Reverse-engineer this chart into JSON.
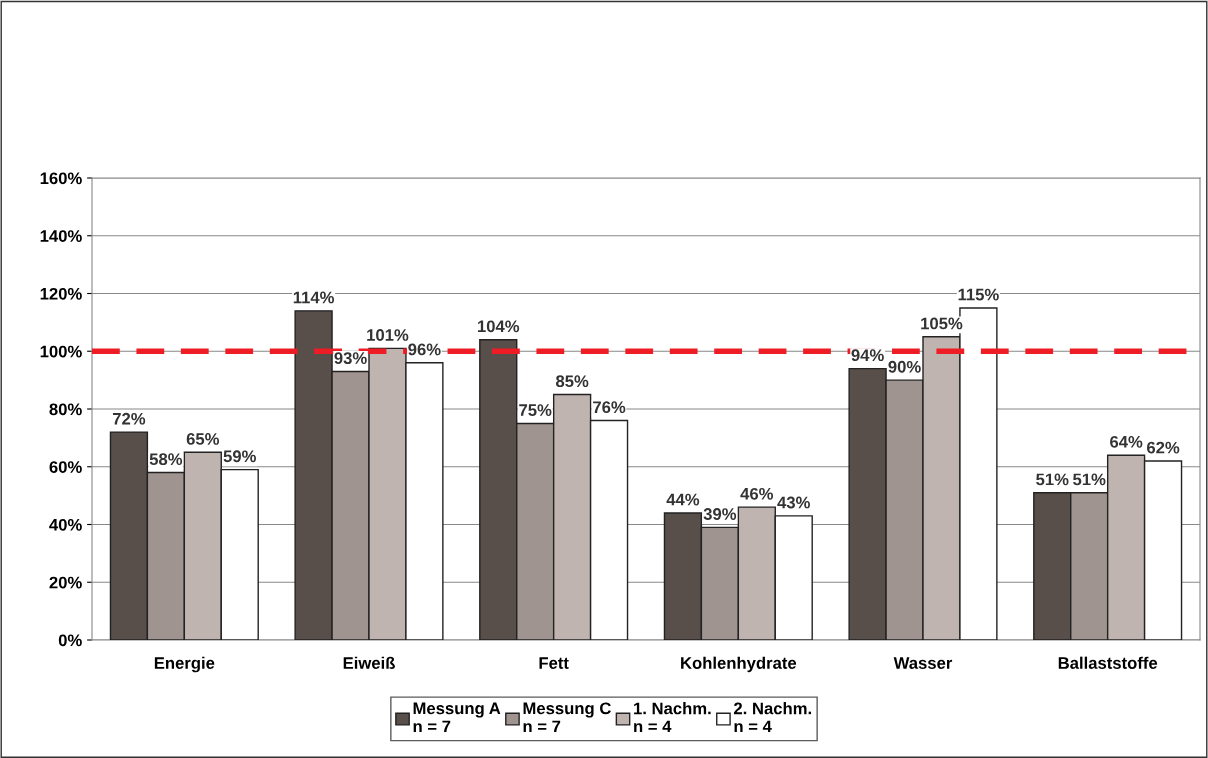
{
  "chart_data": {
    "type": "bar",
    "categories": [
      "Energie",
      "Eiweiß",
      "Fett",
      "Kohlenhydrate",
      "Wasser",
      "Ballaststoffe"
    ],
    "series": [
      {
        "name": "Messung A\nn = 7",
        "color": "#584e4a",
        "values": [
          72,
          114,
          104,
          44,
          94,
          51
        ]
      },
      {
        "name": "Messung C\nn = 7",
        "color": "#a09490",
        "values": [
          58,
          93,
          75,
          39,
          90,
          51
        ]
      },
      {
        "name": "1. Nachm.\nn = 4",
        "color": "#c0b4b0",
        "values": [
          65,
          101,
          85,
          46,
          105,
          64
        ]
      },
      {
        "name": "2. Nachm.\nn = 4",
        "color": "#ffffff",
        "values": [
          59,
          96,
          76,
          43,
          115,
          62
        ]
      }
    ],
    "ylim": [
      0,
      160
    ],
    "yticks": [
      {
        "value": 0,
        "label": "0%"
      },
      {
        "value": 20,
        "label": "20%"
      },
      {
        "value": 40,
        "label": "40%"
      },
      {
        "value": 60,
        "label": "60%"
      },
      {
        "value": 80,
        "label": "80%"
      },
      {
        "value": 100,
        "label": "100%"
      },
      {
        "value": 120,
        "label": "120%"
      },
      {
        "value": 140,
        "label": "140%"
      },
      {
        "value": 160,
        "label": "160%"
      }
    ],
    "grid": "y",
    "legend": "bottom",
    "value_labels": [
      [
        "72%",
        "114%",
        "104%",
        "44%",
        "94%",
        "51%"
      ],
      [
        "58%",
        "93%",
        "75%",
        "39%",
        "90%",
        "51%"
      ],
      [
        "65%",
        "101%",
        "85%",
        "46%",
        "105%",
        "64%"
      ],
      [
        "59%",
        "96%",
        "76%",
        "43%",
        "115%",
        "62%"
      ]
    ],
    "ref_lines": [
      {
        "axis": "y",
        "value": 100,
        "color": "#ee1c24",
        "line_style": "dashed"
      }
    ]
  }
}
